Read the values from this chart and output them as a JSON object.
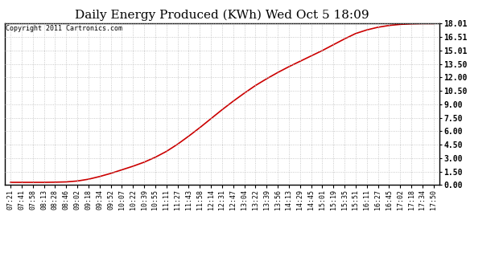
{
  "title": "Daily Energy Produced (KWh) Wed Oct 5 18:09",
  "copyright_text": "Copyright 2011 Cartronics.com",
  "yticks": [
    0.0,
    1.5,
    3.0,
    4.5,
    6.0,
    7.5,
    9.0,
    10.5,
    12.0,
    13.5,
    15.01,
    16.51,
    18.01
  ],
  "ymax": 18.01,
  "ymin": 0.0,
  "x_labels": [
    "07:21",
    "07:41",
    "07:58",
    "08:13",
    "08:28",
    "08:46",
    "09:02",
    "09:18",
    "09:34",
    "09:52",
    "10:07",
    "10:22",
    "10:39",
    "10:55",
    "11:11",
    "11:27",
    "11:43",
    "11:58",
    "12:14",
    "12:31",
    "12:47",
    "13:04",
    "13:22",
    "13:39",
    "13:56",
    "14:13",
    "14:29",
    "14:45",
    "15:01",
    "15:19",
    "15:35",
    "15:51",
    "16:11",
    "16:27",
    "16:45",
    "17:02",
    "17:18",
    "17:34",
    "17:50"
  ],
  "y_values": [
    0.3,
    0.3,
    0.3,
    0.3,
    0.32,
    0.35,
    0.45,
    0.65,
    0.95,
    1.3,
    1.7,
    2.1,
    2.55,
    3.1,
    3.75,
    4.55,
    5.45,
    6.4,
    7.4,
    8.4,
    9.35,
    10.25,
    11.1,
    11.85,
    12.55,
    13.2,
    13.8,
    14.4,
    15.0,
    15.65,
    16.3,
    16.9,
    17.3,
    17.6,
    17.8,
    17.92,
    17.98,
    18.01,
    18.01
  ],
  "line_color": "#cc0000",
  "background_color": "#ffffff",
  "grid_color": "#bbbbbb",
  "title_fontsize": 11,
  "copyright_fontsize": 6,
  "tick_fontsize": 6,
  "ytick_fontsize": 7
}
